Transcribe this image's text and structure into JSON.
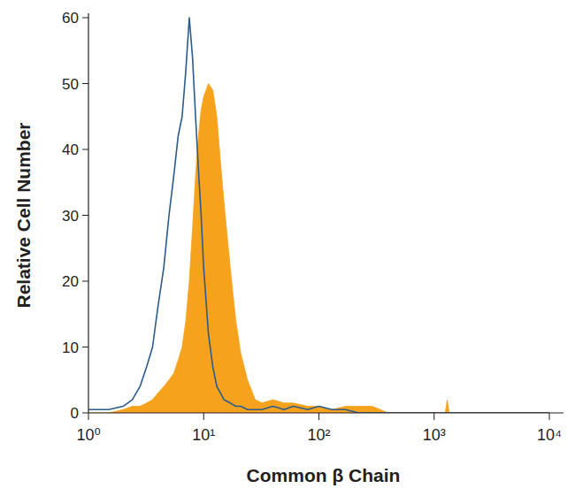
{
  "chart_data": {
    "type": "line",
    "x_label": "Common β Chain",
    "y_label": "Relative Cell Number",
    "log": "x",
    "grid": false,
    "xlim": [
      1,
      10000
    ],
    "ylim": [
      0,
      60
    ],
    "xticks": [
      {
        "value": 1,
        "label": "10⁰"
      },
      {
        "value": 10,
        "label": "10¹"
      },
      {
        "value": 100,
        "label": "10²"
      },
      {
        "value": 1000,
        "label": "10³"
      },
      {
        "value": 10000,
        "label": "10⁴"
      }
    ],
    "yticks": [
      0,
      10,
      20,
      30,
      40,
      50,
      60
    ],
    "x": [
      1,
      1.5,
      2,
      2.4,
      2.8,
      3.2,
      3.6,
      4.0,
      4.5,
      5.0,
      5.5,
      6.0,
      6.5,
      7.0,
      7.5,
      8.0,
      8.5,
      9.0,
      9.5,
      10,
      11,
      12,
      13,
      14,
      15,
      17,
      19,
      21,
      24,
      28,
      32,
      40,
      50,
      60,
      80,
      100,
      130,
      170,
      220,
      290,
      400,
      700,
      1000,
      1250,
      1300,
      1350,
      1600,
      3000,
      10000
    ],
    "series": [
      {
        "type": "line",
        "color": "#2b5c8c",
        "values": [
          0.5,
          0.5,
          1,
          2,
          4,
          7,
          10,
          16,
          22,
          30,
          36,
          42,
          45,
          52,
          60,
          54,
          45,
          37,
          30,
          22,
          12,
          7,
          4,
          3,
          2,
          1.5,
          1,
          1,
          0.5,
          0.5,
          0.5,
          1,
          0.5,
          1,
          0.5,
          1,
          0.5,
          0.5,
          0,
          0,
          0,
          0,
          0,
          0,
          0,
          0,
          0,
          0,
          0
        ]
      },
      {
        "type": "area",
        "color": "#f6a21d",
        "values": [
          0,
          0,
          0.5,
          1,
          1,
          1.5,
          2,
          3,
          4,
          5,
          6,
          8,
          10,
          14,
          20,
          28,
          36,
          42,
          46,
          48,
          50,
          49,
          45,
          38,
          32,
          22,
          14,
          9,
          5,
          2,
          1.5,
          2,
          1.5,
          1.5,
          1,
          1,
          0.5,
          1,
          1,
          1,
          0,
          0,
          0,
          0,
          2,
          0,
          0,
          0,
          0
        ]
      }
    ]
  }
}
